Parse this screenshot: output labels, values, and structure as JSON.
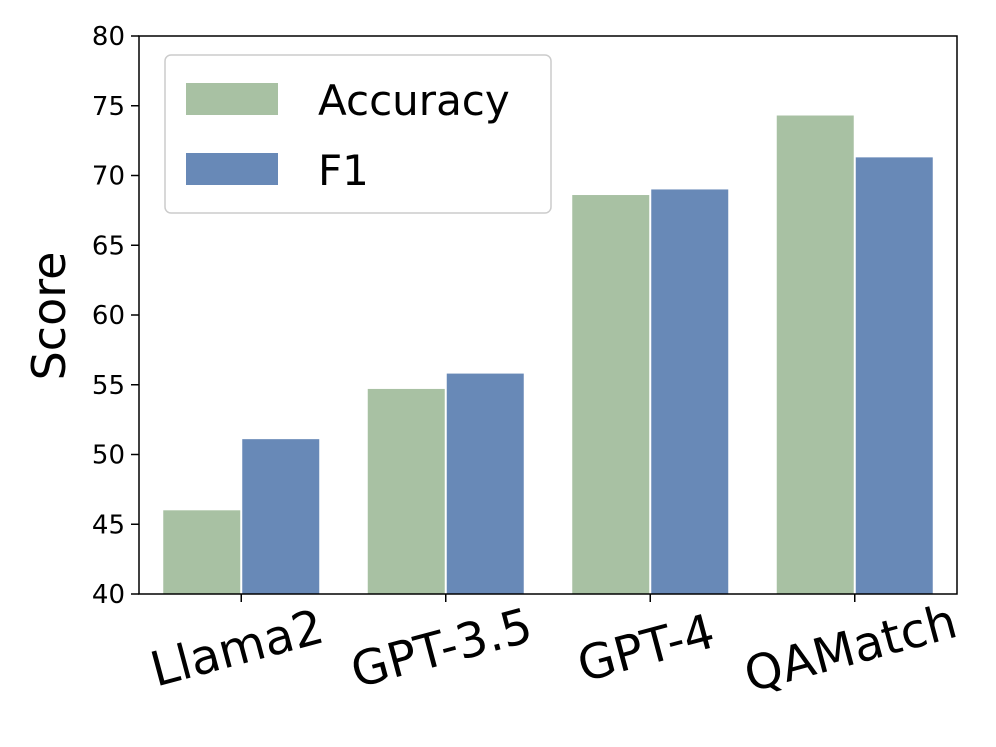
{
  "chart_data": {
    "type": "bar",
    "categories": [
      "Llama2",
      "GPT-3.5",
      "GPT-4",
      "QAMatch"
    ],
    "series": [
      {
        "name": "Accuracy",
        "values": [
          46.0,
          54.7,
          68.6,
          74.3
        ],
        "color": "#a8c1a3"
      },
      {
        "name": "F1",
        "values": [
          51.1,
          55.8,
          69.0,
          71.3
        ],
        "color": "#6889b7"
      }
    ],
    "title": "",
    "xlabel": "",
    "ylabel": "Score",
    "ylim": [
      40,
      80
    ],
    "yticks": [
      40,
      45,
      50,
      55,
      60,
      65,
      70,
      75,
      80
    ],
    "grid": false,
    "legend_position": "top-left"
  }
}
